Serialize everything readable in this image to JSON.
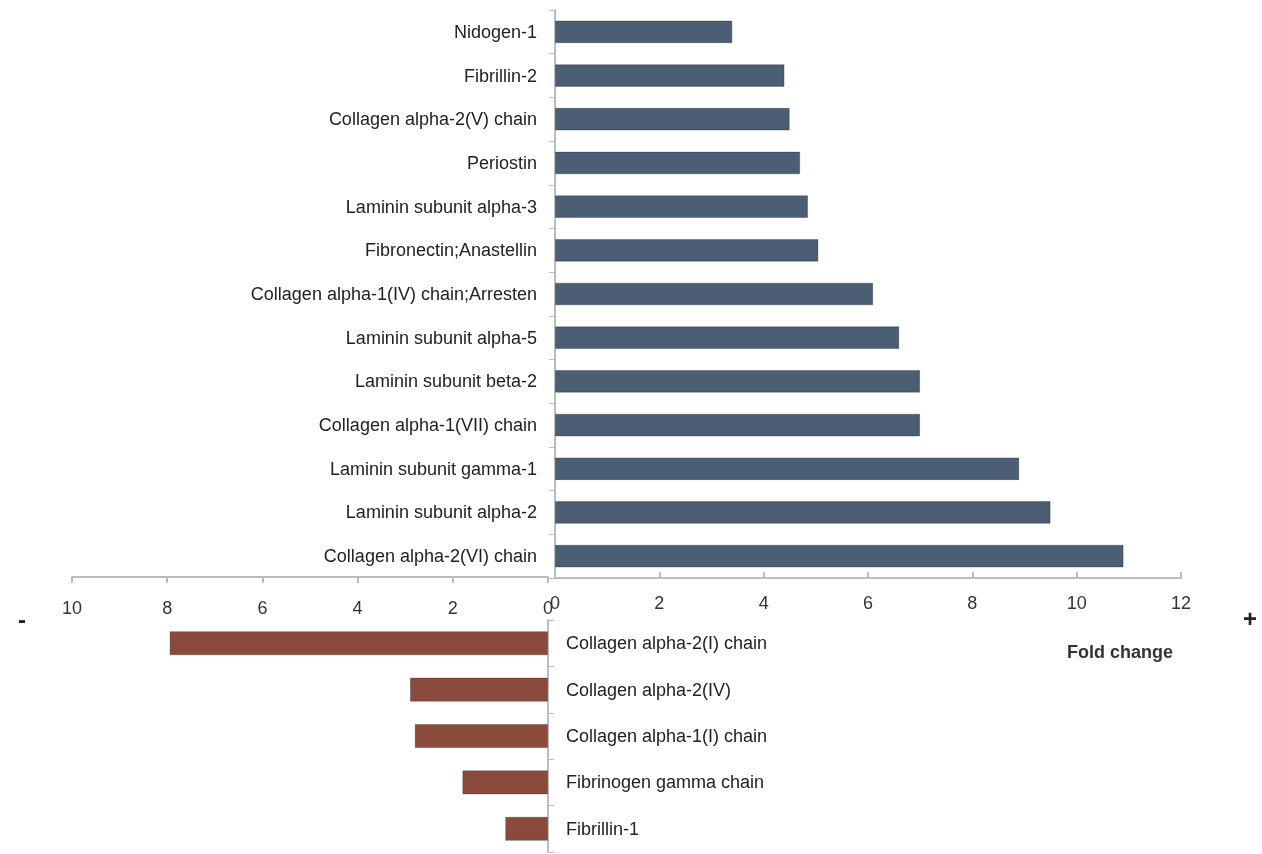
{
  "chart_data": [
    {
      "type": "bar",
      "orientation": "horizontal",
      "categories": [
        "Nidogen-1",
        "Fibrillin-2",
        "Collagen alpha-2(V) chain",
        "Periostin",
        "Laminin subunit alpha-3",
        "Fibronectin;Anastellin",
        "Collagen alpha-1(IV) chain;Arresten",
        "Laminin subunit alpha-5",
        "Laminin subunit beta-2",
        "Collagen alpha-1(VII) chain",
        "Laminin subunit gamma-1",
        "Laminin subunit alpha-2",
        "Collagen alpha-2(VI) chain"
      ],
      "values": [
        3.4,
        4.4,
        4.5,
        4.7,
        4.85,
        5.05,
        6.1,
        6.6,
        7.0,
        7.0,
        8.9,
        9.5,
        10.9
      ],
      "color": "#4b5e74",
      "xlim": [
        0,
        12
      ],
      "xticks": [
        0,
        2,
        4,
        6,
        8,
        10,
        12
      ],
      "xlabel": "Fold change",
      "annotations": [
        "+"
      ]
    },
    {
      "type": "bar",
      "orientation": "horizontal",
      "categories": [
        "Collagen alpha-2(I) chain",
        "Collagen alpha-2(IV)",
        "Collagen alpha-1(I) chain",
        "Fibrinogen gamma chain",
        "Fibrillin-1"
      ],
      "values": [
        7.95,
        2.9,
        2.8,
        1.8,
        0.9
      ],
      "color": "#8a4b3c",
      "xlim": [
        10,
        0
      ],
      "xticks": [
        10,
        8,
        6,
        4,
        2,
        0
      ],
      "annotations": [
        "-"
      ]
    }
  ]
}
